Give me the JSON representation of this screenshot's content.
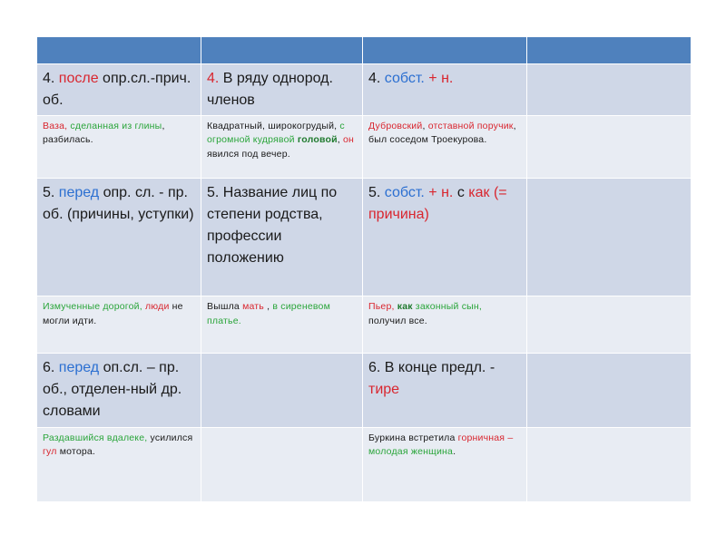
{
  "rows": {
    "r1": {
      "c1": {
        "a": "4. ",
        "b": "после",
        "c": " опр.сл.-прич. об."
      },
      "c2": {
        "a": "4.",
        "b": " В ряду однород. членов"
      },
      "c3": {
        "a": "4. ",
        "b": "собст.",
        "c": " + ",
        "d": "н."
      }
    },
    "r2": {
      "c1": {
        "a": "Ваза, ",
        "b": "сделанная из глины",
        "c": ", разбилась."
      },
      "c2": {
        "a": "Квадратный, широкогрудый, ",
        "b": "с огромной кудрявой ",
        "c": "головой",
        "d": ", ",
        "e": "он",
        "f": " явился под вечер."
      },
      "c3": {
        "a": "Дубровский",
        "b": ", ",
        "c": "отставной поручик",
        "d": ", был соседом Троекурова."
      }
    },
    "r3": {
      "c1": {
        "a": "5. ",
        "b": "перед",
        "c": " опр. сл. - пр. об. (причины, уступки)"
      },
      "c2": {
        "a": "5. Название лиц по степени родства, профессии положению"
      },
      "c3": {
        "a": "5. ",
        "b": "собст.",
        "c": " + ",
        "d": "н.",
        "e": " с ",
        "f": "как",
        "g": " (= причина)"
      }
    },
    "r4": {
      "c1": {
        "a": "Измученные дорогой, ",
        "b": "люди",
        "c": " не могли идти."
      },
      "c2": {
        "a": "Вышла ",
        "b": "мать",
        "c": " , ",
        "d": "в сиреневом платье."
      },
      "c3": {
        "a": "Пьер, ",
        "b": "как",
        "c": " законный сын,",
        "d": " получил все."
      }
    },
    "r5": {
      "c1": {
        "a": "6. ",
        "b": "перед",
        "c": " оп.сл. – пр. об., отделен-ный др. словами"
      },
      "c3": {
        "a": "6. В конце предл. - ",
        "b": "тире"
      }
    },
    "r6": {
      "c1": {
        "a": "Раздавшийся вдалеке,",
        "b": " усилился ",
        "c": "гул",
        "d": " мотора."
      },
      "c3": {
        "a": "Буркина встретила ",
        "b": "горничная",
        "c": " – ",
        "d": "молодая женщина",
        "e": "."
      }
    }
  },
  "colors": {
    "header": "#4f81bd",
    "row_big": "#cfd7e7",
    "row_small": "#e8ecf3",
    "red": "#d9262f",
    "blue": "#2b6fd1",
    "green": "#2aa53a"
  }
}
